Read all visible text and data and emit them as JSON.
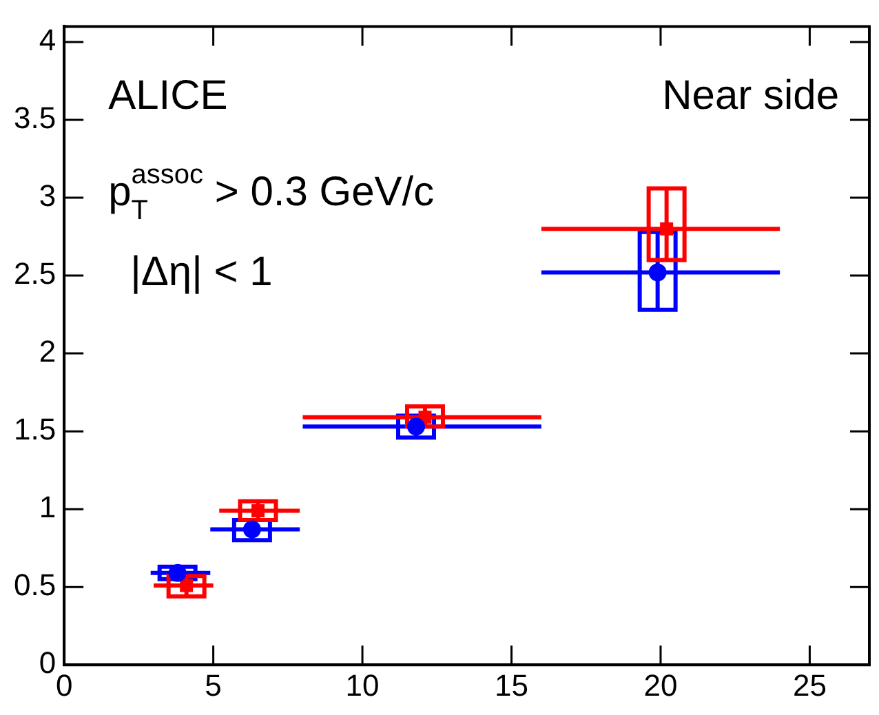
{
  "chart_data": {
    "type": "scatter",
    "annotations": [
      "ALICE",
      "Near side",
      "p$_{T}$$^{assoc}$ > 0.3 GeV/c",
      "|Δη| < 1"
    ],
    "series": [
      {
        "color": "#0000ff",
        "x": [
          3.8,
          6.3,
          11.8,
          19.9
        ],
        "values": [
          0.59,
          0.87,
          1.53,
          2.52
        ],
        "xerrors": [
          [
            2.9,
            4.9
          ],
          [
            4.9,
            7.9
          ],
          [
            8,
            16
          ],
          [
            16,
            24
          ]
        ],
        "errors": [
          [
            0.55,
            0.63
          ],
          [
            0.8,
            0.93
          ],
          [
            1.46,
            1.6
          ],
          [
            2.28,
            2.78
          ]
        ]
      },
      {
        "color": "#ff0000",
        "marker": "square",
        "x": [
          4.1,
          6.5,
          12.1,
          20.2
        ],
        "values": [
          0.51,
          0.99,
          1.59,
          2.8
        ],
        "xerrors": [
          [
            3,
            5
          ],
          [
            5.2,
            7.9
          ],
          [
            8,
            16
          ],
          [
            16,
            24
          ]
        ],
        "errors": [
          [
            0.44,
            0.57
          ],
          [
            0.93,
            1.05
          ],
          [
            1.53,
            1.66
          ],
          [
            2.6,
            3.06
          ]
        ]
      }
    ],
    "xlim": [
      0,
      27
    ],
    "xticks": [
      0,
      5,
      10,
      15,
      20,
      25
    ],
    "ylim": [
      0,
      4.1
    ],
    "yticks": [
      0,
      0.5,
      1,
      1.5,
      2,
      2.5,
      3,
      3.5,
      4
    ],
    "grid": false,
    "legend": false
  }
}
